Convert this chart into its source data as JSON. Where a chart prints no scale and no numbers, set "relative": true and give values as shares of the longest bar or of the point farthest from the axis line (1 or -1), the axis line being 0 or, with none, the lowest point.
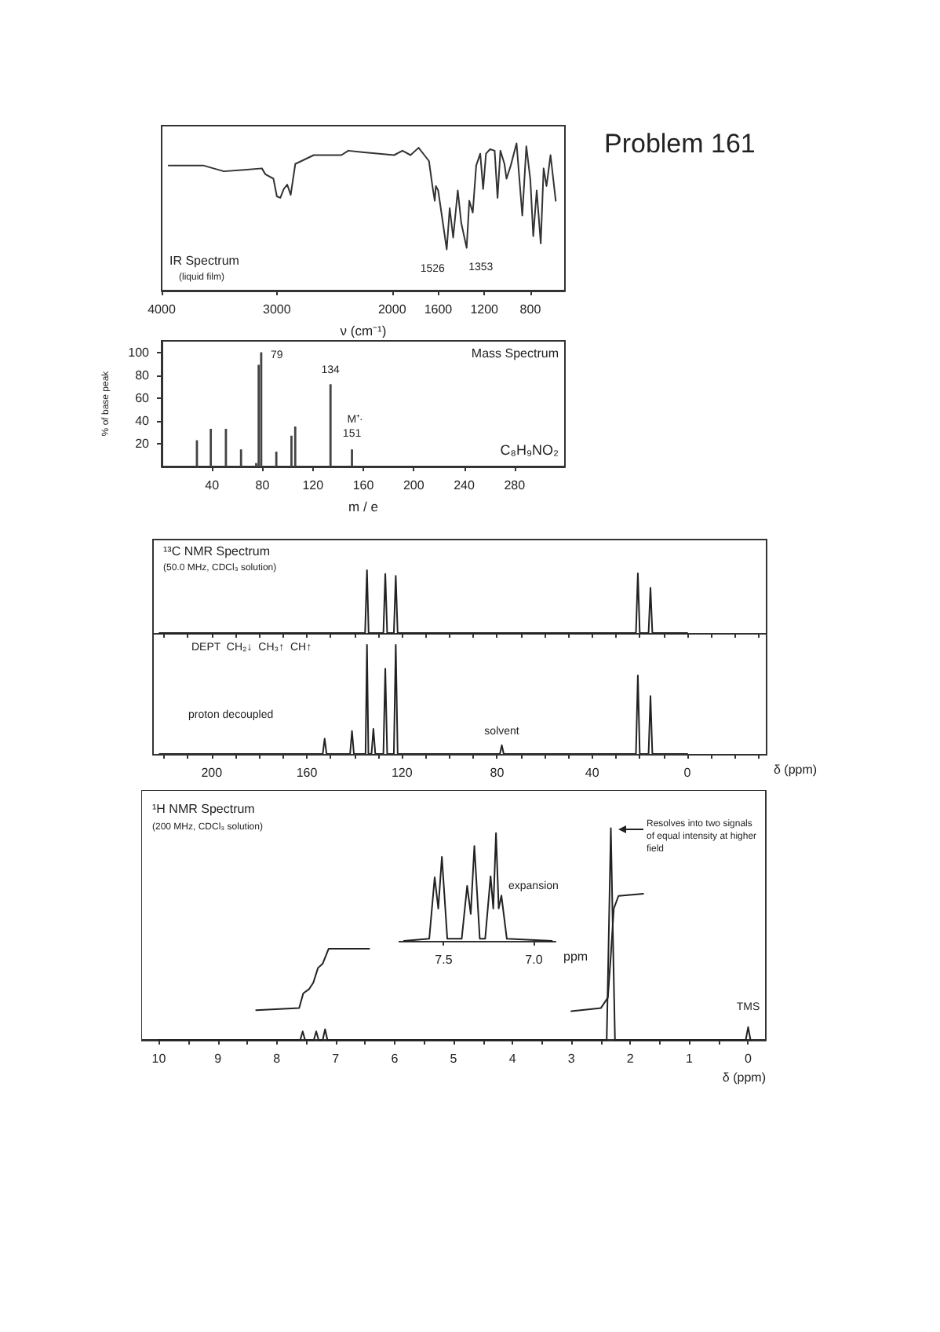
{
  "chart_data": [
    {
      "type": "line",
      "title": "IR Spectrum",
      "subtitle": "(liquid film)",
      "xlabel": "ν (cm⁻¹)",
      "relative": true,
      "xlim": [
        4000,
        500
      ],
      "xticks": [
        4000,
        3000,
        2000,
        1600,
        1200,
        800
      ],
      "annotations": [
        {
          "text": "1526",
          "x": 1526,
          "y": 0.28
        },
        {
          "text": "1353",
          "x": 1353,
          "y": 0.29
        }
      ],
      "series": [
        {
          "color": "#333333",
          "x": [
            3940,
            3640,
            3460,
            3280,
            3130,
            3100,
            3030,
            3000,
            2970,
            2940,
            2910,
            2880,
            2840,
            2680,
            2440,
            2380,
            2260,
            1982,
            1910,
            1840,
            1770,
            1720,
            1680,
            1650,
            1630,
            1620,
            1600,
            1526,
            1500,
            1470,
            1430,
            1400,
            1353,
            1330,
            1300,
            1270,
            1235,
            1210,
            1185,
            1150,
            1110,
            1085,
            1060,
            1025,
            1007,
            970,
            920,
            870,
            835,
            800,
            775,
            745,
            710,
            685,
            660,
            625,
            580
          ],
          "values": [
            0.85,
            0.85,
            0.81,
            0.82,
            0.83,
            0.79,
            0.76,
            0.64,
            0.63,
            0.69,
            0.72,
            0.65,
            0.86,
            0.92,
            0.92,
            0.95,
            0.94,
            0.92,
            0.95,
            0.92,
            0.97,
            0.92,
            0.88,
            0.71,
            0.61,
            0.71,
            0.68,
            0.28,
            0.56,
            0.36,
            0.68,
            0.46,
            0.29,
            0.61,
            0.53,
            0.85,
            0.93,
            0.69,
            0.93,
            0.96,
            0.95,
            0.63,
            0.95,
            0.86,
            0.76,
            0.85,
            1,
            0.51,
            0.98,
            0.75,
            0.37,
            0.68,
            0.32,
            0.83,
            0.71,
            0.92,
            0.61
          ]
        }
      ]
    },
    {
      "type": "other",
      "title": "Problem 161"
    },
    {
      "type": "bar",
      "title": "Mass Spectrum",
      "xlabel": "m / e",
      "ylabel": "% of base peak",
      "xlim": [
        0,
        320
      ],
      "xticks": [
        40,
        80,
        120,
        160,
        200,
        240,
        280
      ],
      "ylim": [
        0,
        110
      ],
      "yticks": [
        20,
        40,
        60,
        80,
        100
      ],
      "annotations": [
        {
          "text": "79",
          "x": 79,
          "y": 100
        },
        {
          "text": "134",
          "x": 134,
          "y": 72
        },
        {
          "text": "M⁺·",
          "x": 151,
          "y": 15
        },
        {
          "text": "151",
          "x": 151,
          "y": 15
        },
        "C₈H₉NO₂"
      ],
      "series": [
        {
          "color": "#444444",
          "x": [
            28,
            39,
            51,
            63,
            75,
            77,
            79,
            91,
            103,
            106,
            134,
            151
          ],
          "values": [
            23,
            33,
            33,
            15,
            3,
            89,
            100,
            13,
            27,
            35,
            72,
            15
          ]
        }
      ]
    },
    {
      "type": "line",
      "title": "¹³C NMR Spectrum",
      "subtitle": "(50.0 MHz, CDCl₃ solution)",
      "relative": true,
      "xlim": [
        225,
        -33
      ],
      "tick_labels": false,
      "xticks": [
        {
          "value": 220,
          "label": null
        },
        {
          "value": 210,
          "label": null
        },
        200,
        {
          "value": 190,
          "label": null
        },
        {
          "value": 180,
          "label": null
        },
        {
          "value": 170,
          "label": null
        },
        160,
        {
          "value": 150,
          "label": null
        },
        {
          "value": 140,
          "label": null
        },
        {
          "value": 130,
          "label": null
        },
        120,
        {
          "value": 110,
          "label": null
        },
        {
          "value": 100,
          "label": null
        },
        {
          "value": 90,
          "label": null
        },
        80,
        {
          "value": 70,
          "label": null
        },
        {
          "value": 60,
          "label": null
        },
        {
          "value": 50,
          "label": null
        },
        40,
        {
          "value": 30,
          "label": null
        },
        {
          "value": 20,
          "label": null
        },
        {
          "value": 10,
          "label": null
        },
        0,
        {
          "value": -10,
          "label": null
        },
        {
          "value": -20,
          "label": null
        },
        {
          "value": -30,
          "label": null
        }
      ],
      "annotations": [
        "DEPT  CH₂↓  CH₃↑  CH↑"
      ],
      "series": [
        {
          "color": "#222222",
          "x": [
            222,
            135.5,
            134.7,
            134,
            127.8,
            127,
            126.2,
            123.4,
            122.6,
            121.8,
            21.6,
            20.8,
            20,
            16.3,
            15.5,
            14.7,
            0
          ],
          "values": [
            0,
            0,
            1,
            0,
            0,
            0.94,
            0,
            0,
            0.91,
            0,
            0,
            0.95,
            0,
            0,
            0.72,
            0,
            0
          ]
        }
      ]
    },
    {
      "type": "line",
      "xlabel": "δ (ppm)",
      "relative": true,
      "xlim": [
        225,
        -33
      ],
      "xticks": [
        {
          "value": 220,
          "label": null
        },
        {
          "value": 210,
          "label": null
        },
        200,
        {
          "value": 190,
          "label": null
        },
        {
          "value": 180,
          "label": null
        },
        {
          "value": 170,
          "label": null
        },
        160,
        {
          "value": 150,
          "label": null
        },
        {
          "value": 140,
          "label": null
        },
        {
          "value": 130,
          "label": null
        },
        120,
        {
          "value": 110,
          "label": null
        },
        {
          "value": 100,
          "label": null
        },
        {
          "value": 90,
          "label": null
        },
        80,
        {
          "value": 70,
          "label": null
        },
        {
          "value": 60,
          "label": null
        },
        {
          "value": 50,
          "label": null
        },
        40,
        {
          "value": 30,
          "label": null
        },
        {
          "value": 20,
          "label": null
        },
        {
          "value": 10,
          "label": null
        },
        0,
        {
          "value": -10,
          "label": null
        },
        {
          "value": -20,
          "label": null
        },
        {
          "value": -30,
          "label": null
        }
      ],
      "annotations": [
        "proton decoupled",
        {
          "text": "solvent",
          "x": 78,
          "y": 0.08
        }
      ],
      "series": [
        {
          "color": "#222222",
          "x": [
            222,
            153.3,
            152.5,
            151.7,
            141.8,
            141,
            140.2,
            135.3,
            134.7,
            134.1,
            132.8,
            132,
            131.2,
            127.8,
            127,
            126.2,
            123.4,
            122.6,
            121.8,
            78.8,
            78,
            77.2,
            21.6,
            20.8,
            20,
            16.3,
            15.5,
            14.7,
            0
          ],
          "values": [
            0,
            0,
            0.14,
            0,
            0,
            0.21,
            0,
            0,
            1,
            0,
            0,
            0.23,
            0,
            0,
            0.78,
            0,
            0,
            1,
            0,
            0,
            0.08,
            0,
            0,
            0.72,
            0,
            0,
            0.53,
            0,
            0
          ]
        }
      ]
    },
    {
      "type": "line",
      "title": "¹H NMR Spectrum",
      "subtitle": "(200 MHz, CDCl₃ solution)",
      "xlabel": "δ (ppm)",
      "relative": true,
      "xlim": [
        10.3,
        -0.3
      ],
      "xticks": [
        10,
        {
          "value": 9.5,
          "label": null
        },
        9,
        {
          "value": 8.5,
          "label": null
        },
        8,
        {
          "value": 7.5,
          "label": null
        },
        7,
        {
          "value": 6.5,
          "label": null
        },
        6,
        {
          "value": 5.5,
          "label": null
        },
        5,
        {
          "value": 4.5,
          "label": null
        },
        4,
        {
          "value": 3.5,
          "label": null
        },
        3,
        {
          "value": 2.5,
          "label": null
        },
        2,
        {
          "value": 1.5,
          "label": null
        },
        1,
        {
          "value": 0.5,
          "label": null
        },
        0
      ],
      "annotations": [
        "Resolves into two signals of equal intensity at higher field",
        {
          "text": "TMS",
          "x": 0,
          "y": 0.06
        }
      ],
      "series": [
        {
          "color": "#222222",
          "x": [
            10,
            7.6,
            7.56,
            7.52,
            7.37,
            7.33,
            7.29,
            7.22,
            7.18,
            7.14,
            2.4,
            2.33,
            2.26,
            0.04,
            0,
            -0.04
          ],
          "values": [
            0,
            0,
            0.04,
            0,
            0,
            0.04,
            0,
            0,
            0.05,
            0,
            0,
            1,
            0,
            0,
            0.06,
            0
          ]
        },
        {
          "color": "#222222",
          "x": [
            8.35,
            7.62,
            7.55,
            7.45,
            7.38,
            7.3,
            7.22,
            7.12,
            6.43
          ],
          "values": [
            0.14,
            0.15,
            0.22,
            0.24,
            0.27,
            0.34,
            0.36,
            0.43,
            0.43
          ]
        },
        {
          "color": "#222222",
          "x": [
            3.0,
            2.5,
            2.38,
            2.33,
            2.28,
            2.2,
            1.78
          ],
          "values": [
            0.135,
            0.15,
            0.2,
            0.4,
            0.62,
            0.68,
            0.69
          ]
        }
      ]
    },
    {
      "type": "line",
      "xlabel": "ppm",
      "relative": true,
      "xlim": [
        7.75,
        6.88
      ],
      "xticks": [
        7.5,
        {
          "value": 7,
          "label": "7.0"
        }
      ],
      "annotations": [
        "expansion"
      ],
      "series": [
        {
          "color": "#222222",
          "x": [
            7.72,
            7.58,
            7.55,
            7.53,
            7.51,
            7.48,
            7.4,
            7.37,
            7.35,
            7.33,
            7.3,
            7.27,
            7.24,
            7.225,
            7.21,
            7.195,
            7.18,
            7.15,
            6.9
          ],
          "values": [
            0,
            0.02,
            0.59,
            0.3,
            0.78,
            0.02,
            0.02,
            0.51,
            0.25,
            0.88,
            0.02,
            0.02,
            0.6,
            0.3,
            1,
            0.3,
            0.42,
            0.02,
            0
          ]
        }
      ]
    }
  ]
}
